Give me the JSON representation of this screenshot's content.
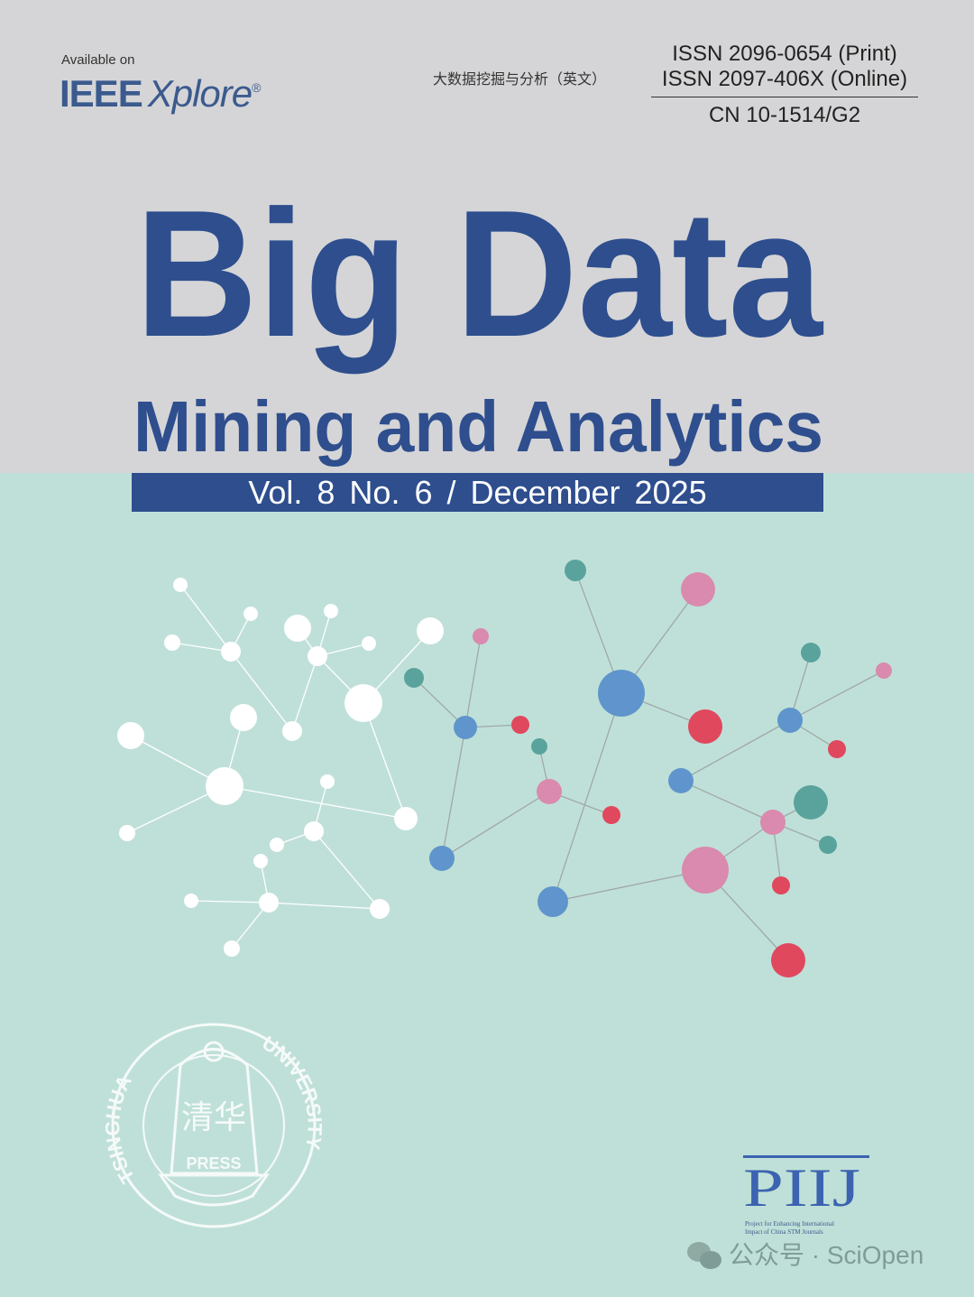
{
  "header": {
    "available_on": "Available on",
    "ieee_bold": "IEEE",
    "ieee_italic": "Xplore",
    "registered": "®",
    "chinese_title": "大数据挖掘与分析（英文）",
    "issn_print": "ISSN 2096-0654 (Print)",
    "issn_online": "ISSN 2097-406X (Online)",
    "cn": "CN 10-1514/G2"
  },
  "title": {
    "line1": "Big Data",
    "line2": "Mining and Analytics"
  },
  "issue": {
    "text": "Vol. 8  No. 6  /  December 2025"
  },
  "seal": {
    "ring_left": "TSINGHUA",
    "ring_right": "UNIVERSITY",
    "glyphs": "清华",
    "press": "PRESS"
  },
  "piij": {
    "logo": "PIIJ",
    "line1": "Project for Enhancing International",
    "line2": "Impact of China STM Journals"
  },
  "watermark": {
    "text": "公众号 · SciOpen"
  },
  "colors": {
    "gray_band": "#d5d5d7",
    "mint": "#bfe0d8",
    "brand_blue": "#2e4e8e",
    "teal": "#5aa39c",
    "pink": "#d98aae",
    "blue": "#5f95cc",
    "red": "#e0485e",
    "white": "#ffffff"
  }
}
